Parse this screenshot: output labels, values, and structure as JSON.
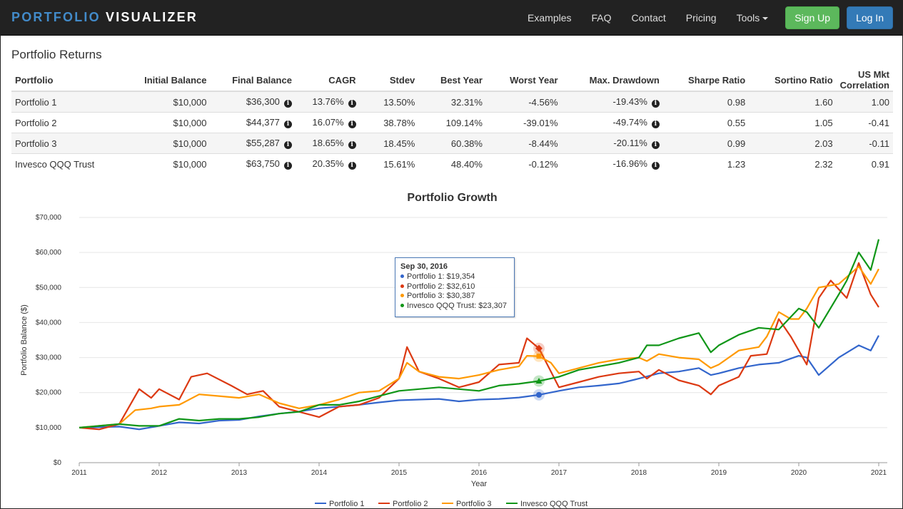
{
  "brand": {
    "part1": "PORTFOLIO",
    "part2": "VISUALIZER"
  },
  "nav": {
    "links": [
      "Examples",
      "FAQ",
      "Contact",
      "Pricing",
      "Tools"
    ],
    "signup": "Sign Up",
    "login": "Log In"
  },
  "section_title": "Portfolio Returns",
  "table": {
    "headers": [
      "Portfolio",
      "Initial Balance",
      "Final Balance",
      "CAGR",
      "Stdev",
      "Best Year",
      "Worst Year",
      "Max. Drawdown",
      "Sharpe Ratio",
      "Sortino Ratio",
      "US Mkt Correlation"
    ],
    "rows": [
      [
        "Portfolio 1",
        "$10,000",
        "$36,300",
        "13.76%",
        "13.50%",
        "32.31%",
        "-4.56%",
        "-19.43%",
        "0.98",
        "1.60",
        "1.00"
      ],
      [
        "Portfolio 2",
        "$10,000",
        "$44,377",
        "16.07%",
        "38.78%",
        "109.14%",
        "-39.01%",
        "-49.74%",
        "0.55",
        "1.05",
        "-0.41"
      ],
      [
        "Portfolio 3",
        "$10,000",
        "$55,287",
        "18.65%",
        "18.45%",
        "60.38%",
        "-8.44%",
        "-20.11%",
        "0.99",
        "2.03",
        "-0.11"
      ],
      [
        "Invesco QQQ Trust",
        "$10,000",
        "$63,750",
        "20.35%",
        "15.61%",
        "48.40%",
        "-0.12%",
        "-16.96%",
        "1.23",
        "2.32",
        "0.91"
      ]
    ]
  },
  "tooltip": {
    "date": "Sep 30, 2016",
    "rows": [
      "Portfolio 1: $19,354",
      "Portfolio 2: $32,610",
      "Portfolio 3: $30,387",
      "Invesco QQQ Trust: $23,307"
    ]
  },
  "colors": {
    "p1": "#3366cc",
    "p2": "#dc3912",
    "p3": "#ff9900",
    "qqq": "#109618",
    "accent": "#337ab7",
    "success": "#5cb85c"
  },
  "chart_data": {
    "type": "line",
    "title": "Portfolio Growth",
    "xlabel": "Year",
    "ylabel": "Portfolio Balance ($)",
    "ylim": [
      0,
      70000
    ],
    "xlim": [
      2011,
      2021
    ],
    "y_ticks": [
      "$0",
      "$10,000",
      "$20,000",
      "$30,000",
      "$40,000",
      "$50,000",
      "$60,000",
      "$70,000"
    ],
    "x_ticks": [
      "2011",
      "2012",
      "2013",
      "2014",
      "2015",
      "2016",
      "2017",
      "2018",
      "2019",
      "2020",
      "2021"
    ],
    "grid": true,
    "legend": "bottom",
    "series": [
      {
        "name": "Portfolio 1",
        "color": "#3366cc",
        "x": [
          2011.0,
          2011.5,
          2011.75,
          2012.0,
          2012.25,
          2012.5,
          2012.75,
          2013.0,
          2013.25,
          2013.5,
          2013.75,
          2014.0,
          2014.25,
          2014.5,
          2014.75,
          2015.0,
          2015.25,
          2015.5,
          2015.75,
          2016.0,
          2016.25,
          2016.5,
          2016.75,
          2017.0,
          2017.25,
          2017.5,
          2017.75,
          2018.0,
          2018.25,
          2018.5,
          2018.75,
          2018.9,
          2019.0,
          2019.25,
          2019.5,
          2019.75,
          2020.0,
          2020.1,
          2020.25,
          2020.5,
          2020.75,
          2020.9,
          2021.0
        ],
        "y": [
          10000,
          10300,
          9500,
          10500,
          11500,
          11200,
          12000,
          12200,
          13200,
          14000,
          14600,
          15500,
          16000,
          16500,
          17200,
          17800,
          18000,
          18200,
          17500,
          18000,
          18200,
          18600,
          19354,
          20500,
          21500,
          22000,
          22600,
          24000,
          25500,
          26000,
          27000,
          25000,
          25500,
          27000,
          28000,
          28500,
          30500,
          30000,
          25000,
          30000,
          33500,
          32000,
          36300
        ]
      },
      {
        "name": "Portfolio 2",
        "color": "#dc3912",
        "x": [
          2011.0,
          2011.25,
          2011.5,
          2011.6,
          2011.75,
          2011.9,
          2012.0,
          2012.25,
          2012.4,
          2012.6,
          2012.9,
          2013.1,
          2013.3,
          2013.5,
          2013.75,
          2014.0,
          2014.25,
          2014.5,
          2014.75,
          2015.0,
          2015.1,
          2015.25,
          2015.5,
          2015.75,
          2016.0,
          2016.25,
          2016.5,
          2016.6,
          2016.75,
          2016.9,
          2017.0,
          2017.25,
          2017.5,
          2017.75,
          2018.0,
          2018.1,
          2018.25,
          2018.5,
          2018.75,
          2018.9,
          2019.0,
          2019.25,
          2019.4,
          2019.6,
          2019.75,
          2019.9,
          2020.0,
          2020.1,
          2020.25,
          2020.4,
          2020.6,
          2020.75,
          2020.9,
          2021.0
        ],
        "y": [
          10000,
          9500,
          11000,
          15000,
          21000,
          18500,
          21000,
          18000,
          24500,
          25500,
          22000,
          19500,
          20500,
          16000,
          14500,
          13000,
          16000,
          16500,
          18500,
          24000,
          33000,
          26000,
          24000,
          21500,
          23000,
          28000,
          28500,
          35500,
          32610,
          26000,
          21500,
          23000,
          24500,
          25500,
          26000,
          24000,
          26500,
          23500,
          22000,
          19500,
          22000,
          24500,
          30500,
          31000,
          41000,
          36000,
          32000,
          28000,
          47000,
          52000,
          47000,
          57000,
          48000,
          44377
        ]
      },
      {
        "name": "Portfolio 3",
        "color": "#ff9900",
        "x": [
          2011.0,
          2011.25,
          2011.5,
          2011.7,
          2011.9,
          2012.0,
          2012.25,
          2012.5,
          2012.75,
          2013.0,
          2013.25,
          2013.5,
          2013.75,
          2014.0,
          2014.25,
          2014.5,
          2014.75,
          2015.0,
          2015.1,
          2015.25,
          2015.5,
          2015.75,
          2016.0,
          2016.25,
          2016.5,
          2016.6,
          2016.75,
          2016.9,
          2017.0,
          2017.25,
          2017.5,
          2017.75,
          2018.0,
          2018.1,
          2018.25,
          2018.5,
          2018.75,
          2018.9,
          2019.0,
          2019.25,
          2019.5,
          2019.6,
          2019.75,
          2019.9,
          2020.0,
          2020.1,
          2020.25,
          2020.5,
          2020.75,
          2020.9,
          2021.0
        ],
        "y": [
          10000,
          10500,
          11000,
          15000,
          15500,
          16000,
          16500,
          19500,
          19000,
          18500,
          19500,
          17000,
          15500,
          16500,
          18000,
          20000,
          20500,
          24000,
          28500,
          26000,
          24500,
          24000,
          25000,
          26500,
          27500,
          30500,
          30387,
          28500,
          25500,
          27000,
          28500,
          29500,
          30000,
          29000,
          31000,
          30000,
          29500,
          27000,
          28000,
          32000,
          33000,
          36000,
          43000,
          41000,
          41000,
          44000,
          50000,
          51000,
          56000,
          51000,
          55287
        ]
      },
      {
        "name": "Invesco QQQ Trust",
        "color": "#109618",
        "x": [
          2011.0,
          2011.25,
          2011.5,
          2011.75,
          2012.0,
          2012.25,
          2012.5,
          2012.75,
          2013.0,
          2013.25,
          2013.5,
          2013.75,
          2014.0,
          2014.25,
          2014.5,
          2014.75,
          2015.0,
          2015.25,
          2015.5,
          2015.75,
          2016.0,
          2016.25,
          2016.5,
          2016.75,
          2017.0,
          2017.25,
          2017.5,
          2017.75,
          2018.0,
          2018.1,
          2018.25,
          2018.5,
          2018.75,
          2018.9,
          2019.0,
          2019.25,
          2019.5,
          2019.75,
          2020.0,
          2020.1,
          2020.25,
          2020.5,
          2020.6,
          2020.75,
          2020.9,
          2021.0
        ],
        "y": [
          10000,
          10500,
          11000,
          10500,
          10500,
          12500,
          12000,
          12500,
          12500,
          13000,
          14000,
          14500,
          16500,
          16500,
          17500,
          19000,
          20500,
          21000,
          21500,
          21000,
          20500,
          22000,
          22500,
          23307,
          24500,
          26500,
          27500,
          28500,
          30000,
          33500,
          33500,
          35500,
          37000,
          31500,
          33500,
          36500,
          38500,
          38000,
          44000,
          43000,
          38500,
          48000,
          52000,
          60000,
          55000,
          63750
        ]
      }
    ]
  }
}
